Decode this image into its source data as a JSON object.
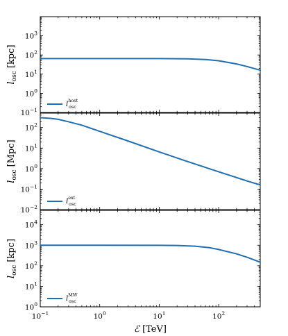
{
  "chart_data": [
    {
      "type": "line",
      "ylabel": "l_osc [kpc]",
      "ylabel_parts": {
        "main": "l",
        "sub": "osc",
        "unit": "[kpc]"
      },
      "ylim": [
        0.1,
        10000
      ],
      "yticks": [
        {
          "base": "10",
          "exp": "−1"
        },
        {
          "base": "10",
          "exp": "0"
        },
        {
          "base": "10",
          "exp": "1"
        },
        {
          "base": "10",
          "exp": "2"
        },
        {
          "base": "10",
          "exp": "3"
        }
      ],
      "ytick_values": [
        0.1,
        1,
        10,
        100,
        1000
      ],
      "xlim": [
        0.1,
        500
      ],
      "xscale": "log",
      "yscale": "log",
      "legend": {
        "main": "l",
        "sup": "host",
        "sub": "osc",
        "placement": "lower-left"
      },
      "series": [
        {
          "color": "#1f6fb2",
          "x": [
            0.1,
            1,
            10,
            30,
            60,
            100,
            200,
            300,
            500
          ],
          "y": [
            65,
            65,
            65,
            63,
            58,
            50,
            34,
            25,
            16
          ]
        }
      ]
    },
    {
      "type": "line",
      "ylabel": "l_osc [Mpc]",
      "ylabel_parts": {
        "main": "l",
        "sub": "osc",
        "unit": "[Mpc]"
      },
      "ylim": [
        0.01,
        500
      ],
      "yticks": [
        {
          "base": "10",
          "exp": "−2"
        },
        {
          "base": "10",
          "exp": "−1"
        },
        {
          "base": "10",
          "exp": "0"
        },
        {
          "base": "10",
          "exp": "1"
        },
        {
          "base": "10",
          "exp": "2"
        }
      ],
      "ytick_values": [
        0.01,
        0.1,
        1,
        10,
        100
      ],
      "xlim": [
        0.1,
        500
      ],
      "xscale": "log",
      "yscale": "log",
      "legend": {
        "main": "l",
        "sup": "ext",
        "sub": "osc",
        "placement": "lower-left"
      },
      "series": [
        {
          "color": "#1f6fb2",
          "x": [
            0.1,
            0.15,
            0.2,
            0.3,
            0.5,
            1,
            3,
            10,
            30,
            100,
            300,
            500
          ],
          "y": [
            300,
            280,
            250,
            190,
            130,
            65,
            22,
            6.5,
            2.2,
            0.7,
            0.25,
            0.16
          ]
        }
      ]
    },
    {
      "type": "line",
      "ylabel": "l_osc [kpc]",
      "ylabel_parts": {
        "main": "l",
        "sub": "osc",
        "unit": "[kpc]"
      },
      "ylim": [
        1,
        50000
      ],
      "yticks": [
        {
          "base": "10",
          "exp": "0"
        },
        {
          "base": "10",
          "exp": "1"
        },
        {
          "base": "10",
          "exp": "2"
        },
        {
          "base": "10",
          "exp": "3"
        },
        {
          "base": "10",
          "exp": "4"
        }
      ],
      "ytick_values": [
        1,
        10,
        100,
        1000,
        10000
      ],
      "xlim": [
        0.1,
        500
      ],
      "xscale": "log",
      "yscale": "log",
      "xlabel": "ℰ [TeV]",
      "xlabel_parts": {
        "main": "ℰ",
        "unit": "[TeV]"
      },
      "xticks": [
        {
          "base": "10",
          "exp": "−1"
        },
        {
          "base": "10",
          "exp": "0"
        },
        {
          "base": "10",
          "exp": "1"
        },
        {
          "base": "10",
          "exp": "2"
        }
      ],
      "xtick_values": [
        0.1,
        1,
        10,
        100
      ],
      "legend": {
        "main": "l",
        "sup": "MW",
        "sub": "osc",
        "placement": "lower-left"
      },
      "series": [
        {
          "color": "#1f6fb2",
          "x": [
            0.1,
            1,
            10,
            20,
            40,
            70,
            100,
            200,
            300,
            500
          ],
          "y": [
            1000,
            1000,
            990,
            970,
            900,
            760,
            620,
            380,
            260,
            150
          ]
        }
      ]
    }
  ]
}
